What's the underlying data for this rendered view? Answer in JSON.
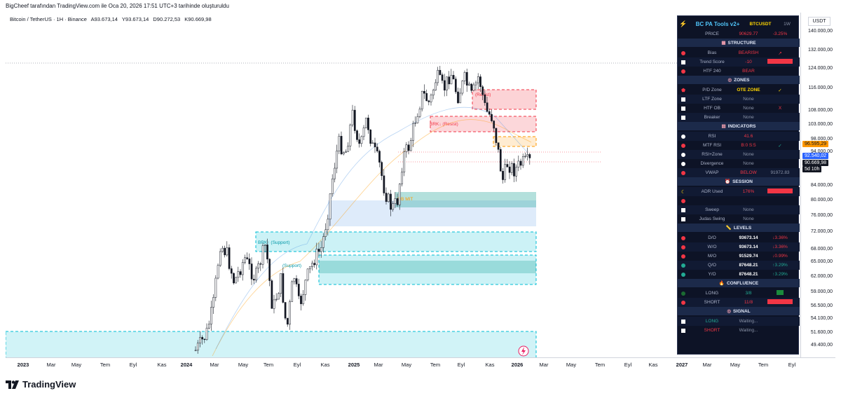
{
  "header": {
    "caption": "BigCheef tarafından TradingView.com ile Oca 20, 2026 17:51 UTC+3 tarihinde oluşturuldu",
    "symbol": "Bitcoin / TetherUS · 1H · Binance",
    "ohlc": [
      "A93.673,14",
      "Y93.673,14",
      "D90.272,53",
      "K90.669,98"
    ]
  },
  "brand": {
    "name": "TradingView"
  },
  "price_axis": {
    "currency": "USDT",
    "labels": [
      "140.000,00",
      "132.000,00",
      "124.000,00",
      "116.000,00",
      "108.000,00",
      "103.000,00",
      "98.000,00",
      "94.000,00",
      "84.000,00",
      "80.000,00",
      "76.000,00",
      "72.000,00",
      "68.000,00",
      "65.000,00",
      "62.000,00",
      "59.000,00",
      "56.500,00",
      "54.100,00",
      "51.600,00",
      "49.400,00"
    ],
    "tags": [
      {
        "text": "96.595,29",
        "bg": "#ff9800",
        "fg": "#131722"
      },
      {
        "text": "92.540,02",
        "bg": "#2962ff",
        "fg": "#ffffff"
      },
      {
        "text": "90.669,98",
        "bg": "#131722",
        "fg": "#ffffff"
      },
      {
        "text": "5d 10h",
        "bg": "#131722",
        "fg": "#ffffff"
      }
    ]
  },
  "time_axis": {
    "labels": [
      {
        "text": "2023",
        "bold": true
      },
      {
        "text": "Mar"
      },
      {
        "text": "May"
      },
      {
        "text": "Tem"
      },
      {
        "text": "Eyl"
      },
      {
        "text": "Kas"
      },
      {
        "text": "2024",
        "bold": true
      },
      {
        "text": "Mar"
      },
      {
        "text": "May"
      },
      {
        "text": "Tem"
      },
      {
        "text": "Eyl"
      },
      {
        "text": "Kas"
      },
      {
        "text": "2025",
        "bold": true
      },
      {
        "text": "Mar"
      },
      {
        "text": "May"
      },
      {
        "text": "Tem"
      },
      {
        "text": "Eyl"
      },
      {
        "text": "Kas"
      },
      {
        "text": "2026",
        "bold": true
      },
      {
        "text": "Mar"
      },
      {
        "text": "May"
      },
      {
        "text": "Tem"
      },
      {
        "text": "Eyl"
      },
      {
        "text": "Kas"
      },
      {
        "text": "2027",
        "bold": true
      },
      {
        "text": "Mar"
      },
      {
        "text": "May"
      },
      {
        "text": "Tem"
      },
      {
        "text": "Eyl"
      }
    ]
  },
  "chart": {
    "zone_labels": [
      "(Resist)",
      "BRK↓ (Resist)",
      "OB MIT",
      "BRK↑ (Support)",
      "(Support)"
    ],
    "colors": {
      "up": "#131722",
      "down": "#131722",
      "support_zone": "#00bcd4",
      "resist_zone": "#f23645",
      "ob_zone": "#4a90e2",
      "ob_mit": "#26a69a"
    }
  },
  "panel": {
    "title": "BC PA Tools v2+",
    "symbol": "BTCUSDT",
    "timeframe": "1W",
    "rows": [
      {
        "type": "row",
        "marker": "none",
        "label": "PRICE",
        "value": "90629.77",
        "value_color": "red",
        "extra": "-3.25%",
        "extra_color": "red"
      },
      {
        "type": "hdr",
        "icon": "▦",
        "label": "STRUCTURE"
      },
      {
        "type": "row",
        "marker": "red",
        "label": "Bias",
        "value": "BEARISH",
        "value_color": "red",
        "extra": "↗",
        "extra_color": "red"
      },
      {
        "type": "row",
        "marker": "sq",
        "label": "Trend Score",
        "value": "-10",
        "value_color": "red",
        "bar": "#f23645"
      },
      {
        "type": "row",
        "marker": "red",
        "label": "HTF 240",
        "value": "BEAR",
        "value_color": "red",
        "extra": "",
        "extra_color": "red"
      },
      {
        "type": "hdr",
        "icon": "◎",
        "label": "ZONES"
      },
      {
        "type": "row",
        "marker": "shield",
        "label": "P/D Zone",
        "value": "OTE ZONE",
        "value_color": "yel",
        "extra": "✓",
        "extra_color": "yel"
      },
      {
        "type": "row",
        "marker": "sq",
        "label": "LTF Zone",
        "value": "None",
        "value_color": "gray",
        "extra": "",
        "extra_color": "gray"
      },
      {
        "type": "row",
        "marker": "sq",
        "label": "HTF OB",
        "value": "None",
        "value_color": "gray",
        "extra": "X",
        "extra_color": "red"
      },
      {
        "type": "row",
        "marker": "sq",
        "label": "Breaker",
        "value": "None",
        "value_color": "gray",
        "extra": "",
        "extra_color": "gray"
      },
      {
        "type": "hdr",
        "icon": "▤",
        "label": "INDICATORS"
      },
      {
        "type": "row",
        "marker": "white",
        "label": "RSI",
        "value": "41.6",
        "value_color": "red",
        "extra": "",
        "extra_color": "gray"
      },
      {
        "type": "row",
        "marker": "red",
        "label": "MTF RSI",
        "value": "B:0 S:5",
        "value_color": "red",
        "extra": "✓",
        "extra_color": "grn"
      },
      {
        "type": "row",
        "marker": "white",
        "label": "RSI+Zone",
        "value": "None",
        "value_color": "gray",
        "extra": "",
        "extra_color": "gray"
      },
      {
        "type": "row",
        "marker": "white",
        "label": "Divergence",
        "value": "None",
        "value_color": "gray",
        "extra": "",
        "extra_color": "gray"
      },
      {
        "type": "row",
        "marker": "red",
        "label": "VWAP",
        "value": "BELOW",
        "value_color": "red",
        "extra": "91972.83",
        "extra_color": "gray"
      },
      {
        "type": "hdr",
        "icon": "⏰",
        "label": "SESSION"
      },
      {
        "type": "row",
        "marker": "moon",
        "label": "ADR Used",
        "value": "176%",
        "value_color": "red",
        "bar": "#f23645"
      },
      {
        "type": "row",
        "marker": "red",
        "label": "",
        "value": "",
        "value_color": "gray",
        "extra": "",
        "extra_color": "gray"
      },
      {
        "type": "row",
        "marker": "sq",
        "label": "Sweep",
        "value": "None",
        "value_color": "gray",
        "extra": "",
        "extra_color": "gray"
      },
      {
        "type": "row",
        "marker": "sq",
        "label": "Judas Swing",
        "value": "None",
        "value_color": "gray",
        "extra": "",
        "extra_color": "gray"
      },
      {
        "type": "hdr",
        "icon": "📏",
        "label": "LEVELS"
      },
      {
        "type": "row",
        "marker": "red",
        "label": "D/O",
        "value": "93673.14",
        "value_color": "wht",
        "extra": "↓3.36%",
        "extra_color": "red"
      },
      {
        "type": "row",
        "marker": "red",
        "label": "W/O",
        "value": "93673.14",
        "value_color": "wht",
        "extra": "↓3.36%",
        "extra_color": "red"
      },
      {
        "type": "row",
        "marker": "red",
        "label": "M/O",
        "value": "91529.74",
        "value_color": "wht",
        "extra": "↓0.99%",
        "extra_color": "red"
      },
      {
        "type": "row",
        "marker": "green",
        "label": "Q/O",
        "value": "87648.21",
        "value_color": "wht",
        "extra": "↑3.29%",
        "extra_color": "grn"
      },
      {
        "type": "row",
        "marker": "green",
        "label": "Y/O",
        "value": "87648.21",
        "value_color": "wht",
        "extra": "↑3.29%",
        "extra_color": "grn"
      },
      {
        "type": "hdr",
        "icon": "🔥",
        "label": "CONFLUENCE"
      },
      {
        "type": "row",
        "marker": "darkgreen",
        "label": "LONG",
        "value": "3/8",
        "value_color": "grn",
        "bar": "#1b8a3c",
        "bar_w": 10
      },
      {
        "type": "row",
        "marker": "red",
        "label": "SHORT",
        "value": "11/8",
        "value_color": "red",
        "bar": "#f23645"
      },
      {
        "type": "hdr",
        "icon": "◎",
        "label": "SIGNAL"
      },
      {
        "type": "row",
        "marker": "sq",
        "label": "LONG",
        "label_color": "grn",
        "value": "Waiting...",
        "value_color": "gray",
        "extra": "",
        "extra_color": "gray"
      },
      {
        "type": "row",
        "marker": "sq",
        "label": "SHORT",
        "label_color": "red",
        "value": "Waiting...",
        "value_color": "gray",
        "extra": "",
        "extra_color": "gray"
      }
    ]
  }
}
